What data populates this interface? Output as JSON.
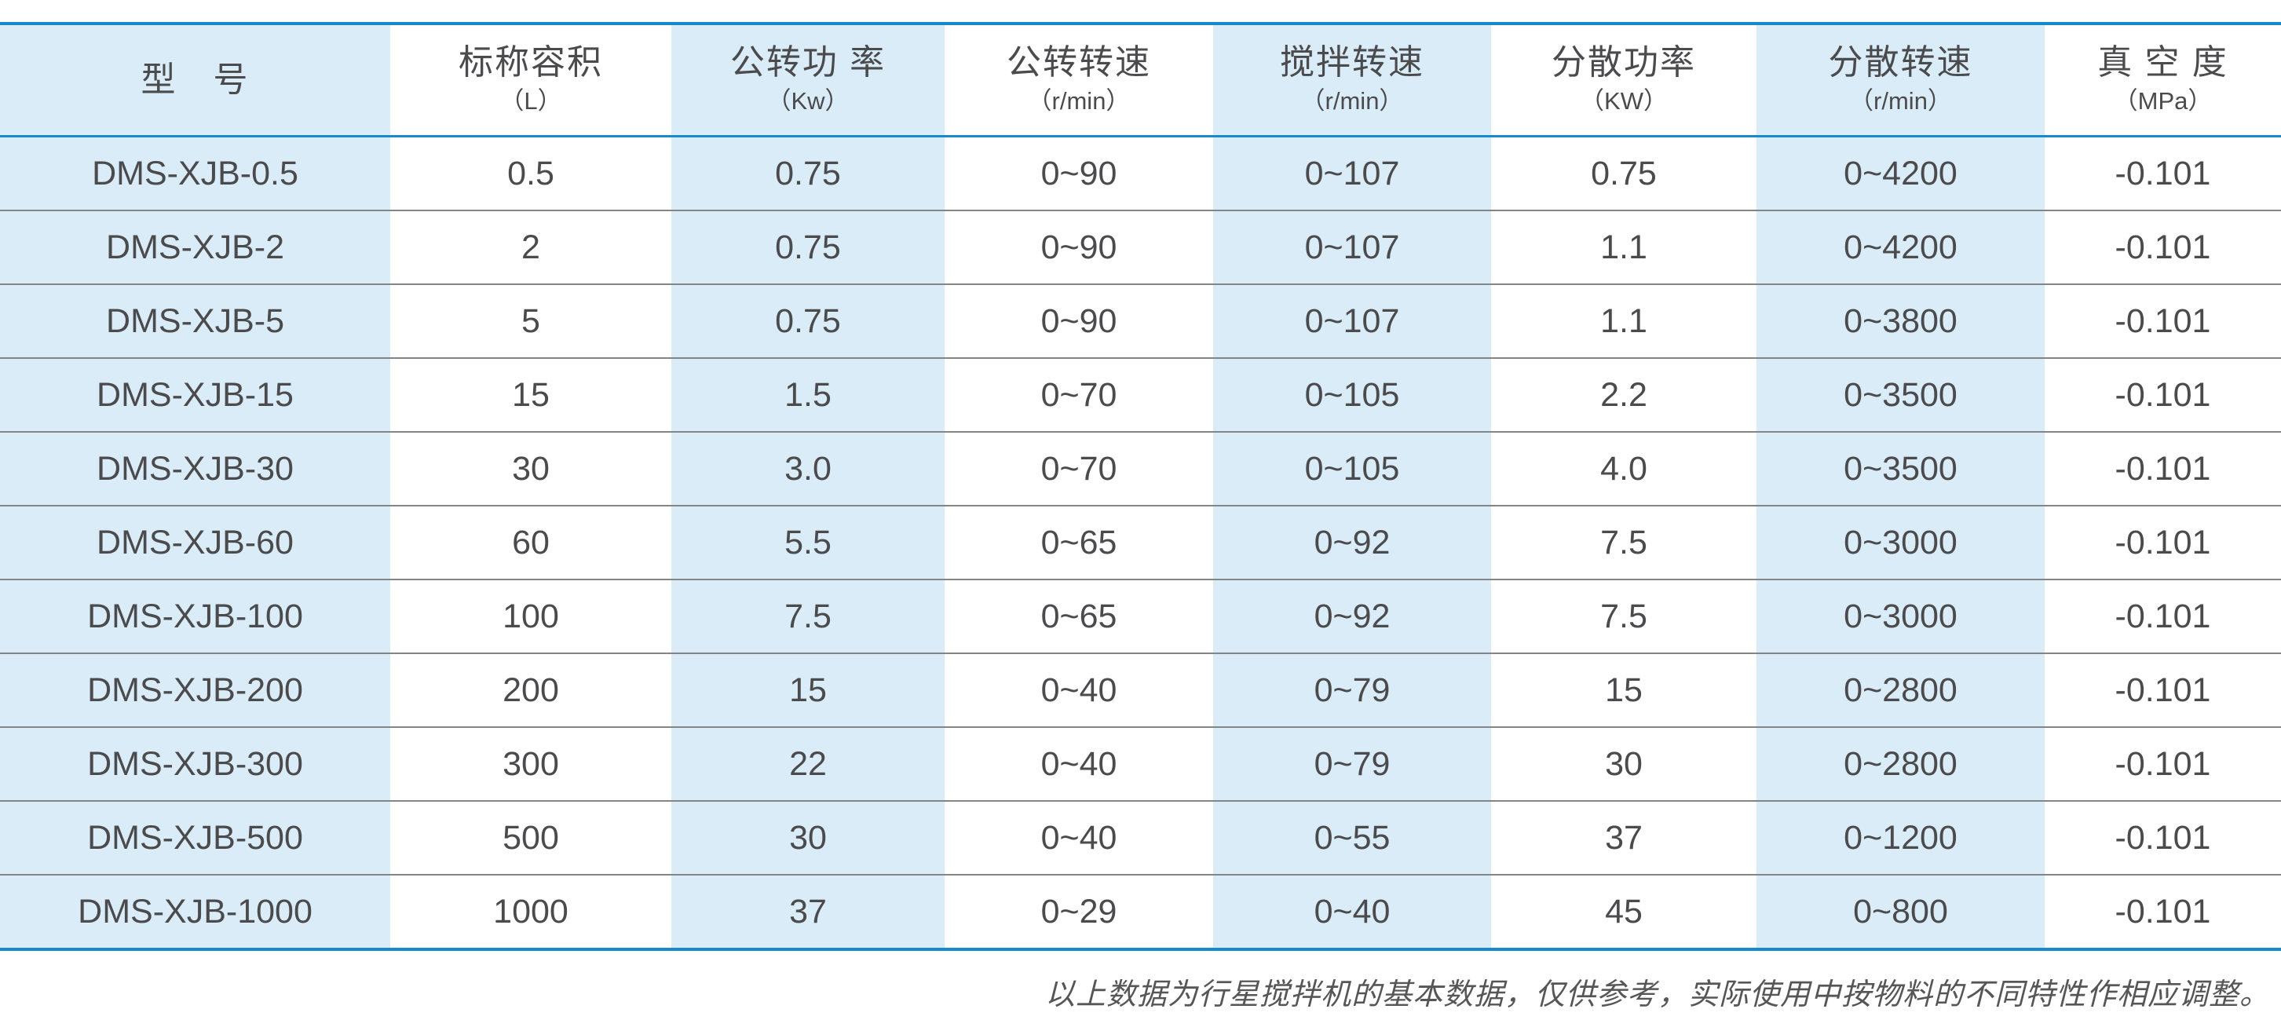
{
  "colors": {
    "accent_blue": "#178acd",
    "light_blue_cell": "#d9ecf8",
    "body_text": "#4b4b4d",
    "row_divider": "#848484",
    "footer_text": "#565656"
  },
  "table": {
    "columns": [
      {
        "title": "型　号",
        "unit": ""
      },
      {
        "title": "标称容积",
        "unit": "（L）"
      },
      {
        "title": "公转功 率",
        "unit": "（Kw）"
      },
      {
        "title": "公转转速",
        "unit": "（r/min）"
      },
      {
        "title": "搅拌转速",
        "unit": "（r/min）"
      },
      {
        "title": "分散功率",
        "unit": "（KW）"
      },
      {
        "title": "分散转速",
        "unit": "（r/min）"
      },
      {
        "title": "真 空 度",
        "unit": "（MPa）"
      }
    ],
    "rows": [
      [
        "DMS-XJB-0.5",
        "0.5",
        "0.75",
        "0~90",
        "0~107",
        "0.75",
        "0~4200",
        "-0.101"
      ],
      [
        "DMS-XJB-2",
        "2",
        "0.75",
        "0~90",
        "0~107",
        "1.1",
        "0~4200",
        "-0.101"
      ],
      [
        "DMS-XJB-5",
        "5",
        "0.75",
        "0~90",
        "0~107",
        "1.1",
        "0~3800",
        "-0.101"
      ],
      [
        "DMS-XJB-15",
        "15",
        "1.5",
        "0~70",
        "0~105",
        "2.2",
        "0~3500",
        "-0.101"
      ],
      [
        "DMS-XJB-30",
        "30",
        "3.0",
        "0~70",
        "0~105",
        "4.0",
        "0~3500",
        "-0.101"
      ],
      [
        "DMS-XJB-60",
        "60",
        "5.5",
        "0~65",
        "0~92",
        "7.5",
        "0~3000",
        "-0.101"
      ],
      [
        "DMS-XJB-100",
        "100",
        "7.5",
        "0~65",
        "0~92",
        "7.5",
        "0~3000",
        "-0.101"
      ],
      [
        "DMS-XJB-200",
        "200",
        "15",
        "0~40",
        "0~79",
        "15",
        "0~2800",
        "-0.101"
      ],
      [
        "DMS-XJB-300",
        "300",
        "22",
        "0~40",
        "0~79",
        "30",
        "0~2800",
        "-0.101"
      ],
      [
        "DMS-XJB-500",
        "500",
        "30",
        "0~40",
        "0~55",
        "37",
        "0~1200",
        "-0.101"
      ],
      [
        "DMS-XJB-1000",
        "1000",
        "37",
        "0~29",
        "0~40",
        "45",
        "0~800",
        "-0.101"
      ]
    ]
  },
  "footer": {
    "note": "以上数据为行星搅拌机的基本数据，仅供参考，实际使用中按物料的不同特性作相应调整。"
  }
}
